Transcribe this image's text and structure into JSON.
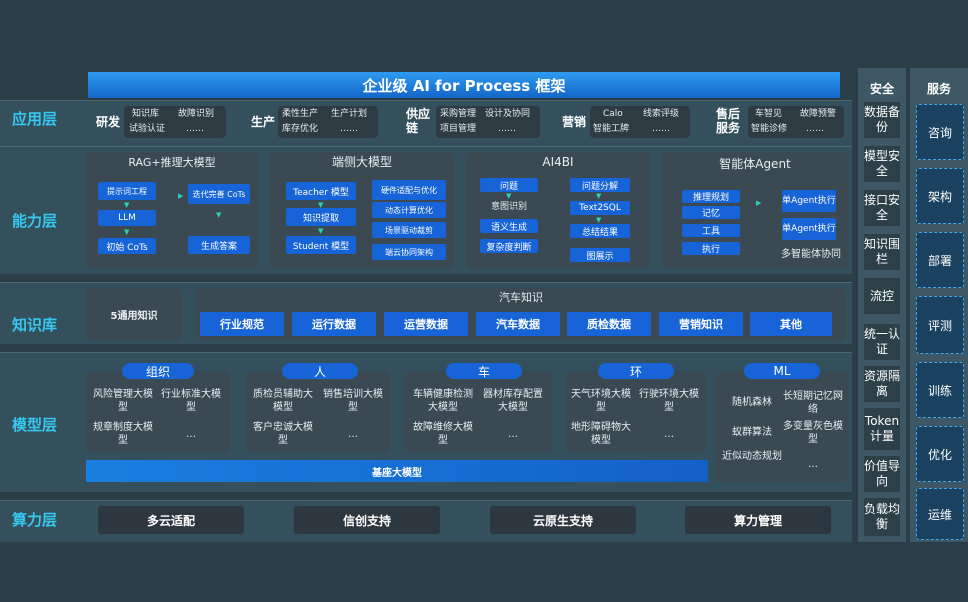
{
  "title": "企业级 AI for Process 框架",
  "layers": {
    "app": "应用层",
    "capability": "能力层",
    "knowledge": "知识库",
    "model": "模型层",
    "compute": "算力层"
  },
  "app_groups": [
    {
      "label": "研发",
      "items": [
        "知识库",
        "故障识别",
        "试验认证",
        "……"
      ]
    },
    {
      "label": "生产",
      "items": [
        "柔性生产",
        "生产计划",
        "库存优化",
        "……"
      ]
    },
    {
      "label": "供应链",
      "items": [
        "采购管理",
        "设计及协同",
        "项目管理",
        "……"
      ]
    },
    {
      "label": "营销",
      "items": [
        "Calo",
        "线索评级",
        "智能工牌",
        "……"
      ]
    },
    {
      "label": "售后服务",
      "items": [
        "车智见",
        "故障预警",
        "智能诊修",
        "……"
      ]
    }
  ],
  "capability": {
    "rag": {
      "title": "RAG+推理大模型",
      "items": [
        "提示词工程",
        "LLM",
        "初始 CoTs",
        "迭代完善 CoTs",
        "生成答案"
      ]
    },
    "edge": {
      "title": "端侧大模型",
      "items": [
        "Teacher 模型",
        "知识提取",
        "Student 模型",
        "硬件适配与优化",
        "动态计算优化",
        "场景驱动裁剪",
        "端云协同架构"
      ]
    },
    "ai4bi": {
      "title": "AI4BI",
      "items": [
        "问题",
        "意图识别",
        "语义生成",
        "复杂度判断",
        "问题分解",
        "Text2SQL",
        "总结结果",
        "图展示"
      ]
    },
    "agent": {
      "title": "智能体Agent",
      "items": [
        "推理规划",
        "记忆",
        "工具",
        "执行",
        "单Agent执行",
        "单Agent执行",
        "多智能体协同"
      ]
    }
  },
  "knowledge": {
    "general": "5通用知识",
    "auto_title": "汽车知识",
    "items": [
      "行业规范",
      "运行数据",
      "运营数据",
      "汽车数据",
      "质检数据",
      "营销知识",
      "其他"
    ]
  },
  "models": [
    {
      "tag": "组织",
      "items": [
        "风险管理大模型",
        "行业标准大模型",
        "规章制度大模型",
        "…"
      ]
    },
    {
      "tag": "人",
      "items": [
        "质检员辅助大模型",
        "销售培训大模型",
        "客户忠诚大模型",
        "…"
      ]
    },
    {
      "tag": "车",
      "items": [
        "车辆健康检测大模型",
        "器材库存配置大模型",
        "故障维修大模型",
        "…"
      ]
    },
    {
      "tag": "环",
      "items": [
        "天气环境大模型",
        "行驶环境大模型",
        "地形障碍物大模型",
        "…"
      ]
    },
    {
      "tag": "ML",
      "items": [
        "随机森林",
        "长短期记忆网络",
        "蚁群算法",
        "多变量灰色模型",
        "近似动态规划",
        "…"
      ]
    }
  ],
  "base_model": "基座大模型",
  "compute": [
    "多云适配",
    "信创支持",
    "云原生支持",
    "算力管理"
  ],
  "security": {
    "title": "安全",
    "items": [
      "数据备份",
      "模型安全",
      "接口安全",
      "知识围栏",
      "流控",
      "统一认证",
      "资源隔离",
      "Token计量",
      "价值导向",
      "负载均衡"
    ]
  },
  "services": {
    "title": "服务",
    "items": [
      "咨询",
      "架构",
      "部署",
      "评测",
      "训练",
      "优化",
      "运维"
    ]
  },
  "colors": {
    "accent": "#1664d8",
    "label": "#37c8f0",
    "background": "#2b3e48"
  }
}
